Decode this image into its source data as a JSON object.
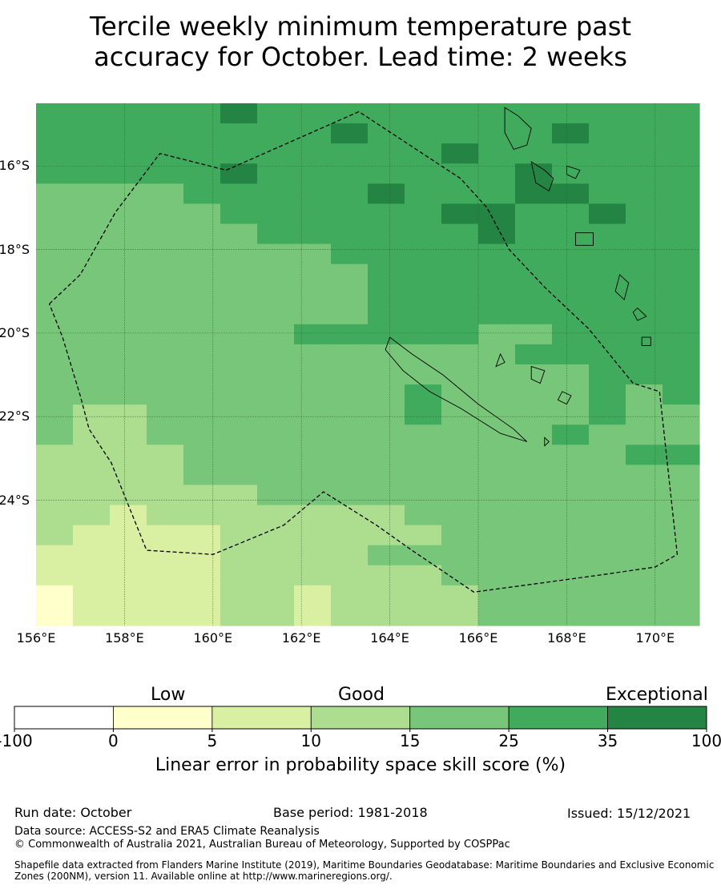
{
  "title_line1": "Tercile weekly minimum temperature past",
  "title_line2": "accuracy for October. Lead time: 2 weeks",
  "map": {
    "lon_range": [
      156.0,
      171.0
    ],
    "lat_range": [
      -27.0,
      -14.5
    ],
    "cell_deg": 0.83,
    "lat_labels": [
      "16°S",
      "18°S",
      "20°S",
      "22°S",
      "24°S"
    ],
    "lat_values": [
      -16,
      -18,
      -20,
      -22,
      -24
    ],
    "lon_labels": [
      "156°E",
      "158°E",
      "160°E",
      "162°E",
      "164°E",
      "166°E",
      "168°E",
      "170°E"
    ],
    "lon_values": [
      156,
      158,
      160,
      162,
      164,
      166,
      168,
      170
    ],
    "skill_grid_rows": [
      "FFFFFGFFFFFFFFFFFF",
      "FFFFFFFFGFFFFFGFFF",
      "FFFFFFFFFFFGFFFFFF",
      "FFFFFGFFFFFFFGFFFF",
      "EEEEFFFFFGFFFGGFFF",
      "EEEEEFFFFFFGGFFGFF",
      "EEEEEEFFFFFFGFFFFF",
      "EEEEEEEEFFFFFFFFFF",
      "EEEEEEEEEFFFFFFFFF",
      "EEEEEEEEEFFFFFFFFF",
      "EEEEEEEEEFFFFFFFFF",
      "EEEEEEEFFFFFEEFFFF",
      "EEEEEEEEEEEEEFFFFF",
      "EEEEEEEEEEEEEEEFFF",
      "EEEEEEEEEEFEEEEFEF",
      "EDDEEEEEEEFEEEEFEE",
      "EDDEEEEEEEEEEEFEEE",
      "DDDDEEEEEEEEEEEEFF",
      "DDDDEEEEEEEEEEEEEE",
      "DDDDDDEEEEEEEEEEEE",
      "DDCDDDDDDDEEEEEEEE",
      "DCCCCDDDDDDEEEEEEE",
      "CCCCCDDDDEEEEEEEEE",
      "CCCCCDDDDDDEEEEEEE",
      "BCCCCDDCDDDDEEEEEE",
      "BCCCCDDCDDDDEEEEEE"
    ],
    "grid_legend": {
      "B": "0 to 5",
      "C": "5 to 10",
      "D": "10 to 15",
      "E": "15 to 25",
      "F": "25 to 35",
      "G": "35 to 100"
    },
    "eez_boundary": [
      [
        156.3,
        -19.3
      ],
      [
        157.0,
        -18.6
      ],
      [
        157.8,
        -17.1
      ],
      [
        158.8,
        -15.7
      ],
      [
        160.3,
        -16.1
      ],
      [
        163.3,
        -14.7
      ],
      [
        165.6,
        -16.3
      ],
      [
        166.2,
        -17.0
      ],
      [
        166.7,
        -18.0
      ],
      [
        167.5,
        -18.9
      ],
      [
        168.5,
        -19.9
      ],
      [
        169.5,
        -21.2
      ],
      [
        170.1,
        -21.4
      ],
      [
        170.5,
        -25.3
      ],
      [
        170.0,
        -25.6
      ],
      [
        168.7,
        -25.8
      ],
      [
        165.9,
        -26.2
      ],
      [
        164.5,
        -25.2
      ],
      [
        163.7,
        -24.6
      ],
      [
        162.5,
        -23.8
      ],
      [
        161.6,
        -24.6
      ],
      [
        160.0,
        -25.3
      ],
      [
        158.5,
        -25.2
      ],
      [
        157.7,
        -23.1
      ],
      [
        157.2,
        -22.3
      ],
      [
        157.0,
        -21.5
      ],
      [
        156.6,
        -20.1
      ]
    ],
    "land_polygons": [
      [
        [
          164.0,
          -20.1
        ],
        [
          164.5,
          -20.5
        ],
        [
          165.2,
          -21.0
        ],
        [
          166.0,
          -21.7
        ],
        [
          166.8,
          -22.3
        ],
        [
          167.1,
          -22.6
        ],
        [
          166.5,
          -22.4
        ],
        [
          165.6,
          -21.8
        ],
        [
          164.9,
          -21.4
        ],
        [
          164.3,
          -20.9
        ],
        [
          163.9,
          -20.4
        ]
      ],
      [
        [
          166.6,
          -14.6
        ],
        [
          166.9,
          -14.8
        ],
        [
          167.2,
          -15.1
        ],
        [
          167.1,
          -15.5
        ],
        [
          166.8,
          -15.6
        ],
        [
          166.6,
          -15.2
        ]
      ],
      [
        [
          167.2,
          -15.9
        ],
        [
          167.5,
          -16.1
        ],
        [
          167.7,
          -16.3
        ],
        [
          167.6,
          -16.6
        ],
        [
          167.3,
          -16.4
        ]
      ],
      [
        [
          168.0,
          -16.0
        ],
        [
          168.3,
          -16.1
        ],
        [
          168.2,
          -16.3
        ],
        [
          168.0,
          -16.2
        ]
      ],
      [
        [
          168.2,
          -17.6
        ],
        [
          168.6,
          -17.6
        ],
        [
          168.6,
          -17.9
        ],
        [
          168.2,
          -17.9
        ]
      ],
      [
        [
          169.2,
          -18.6
        ],
        [
          169.4,
          -18.8
        ],
        [
          169.3,
          -19.2
        ],
        [
          169.1,
          -19.0
        ]
      ],
      [
        [
          169.6,
          -19.4
        ],
        [
          169.8,
          -19.6
        ],
        [
          169.6,
          -19.7
        ],
        [
          169.5,
          -19.5
        ]
      ],
      [
        [
          167.2,
          -20.8
        ],
        [
          167.5,
          -20.9
        ],
        [
          167.4,
          -21.2
        ],
        [
          167.2,
          -21.1
        ]
      ],
      [
        [
          167.9,
          -21.4
        ],
        [
          168.1,
          -21.5
        ],
        [
          168.0,
          -21.7
        ],
        [
          167.8,
          -21.6
        ]
      ],
      [
        [
          166.5,
          -20.5
        ],
        [
          166.6,
          -20.7
        ],
        [
          166.4,
          -20.8
        ]
      ],
      [
        [
          169.7,
          -20.1
        ],
        [
          169.9,
          -20.1
        ],
        [
          169.9,
          -20.3
        ],
        [
          169.7,
          -20.3
        ]
      ],
      [
        [
          167.5,
          -22.5
        ],
        [
          167.6,
          -22.6
        ],
        [
          167.5,
          -22.7
        ]
      ]
    ],
    "colors": {
      "A": "#ffffff",
      "B": "#ffffcc",
      "C": "#d9f0a3",
      "D": "#addd8e",
      "E": "#78c679",
      "F": "#41ab5d",
      "G": "#238443"
    }
  },
  "legend": {
    "categories": [
      "Low",
      "Good",
      "Exceptional"
    ],
    "ticks": [
      "-100",
      "0",
      "5",
      "10",
      "15",
      "25",
      "35",
      "100"
    ],
    "colors": [
      "#ffffff",
      "#ffffcc",
      "#d9f0a3",
      "#addd8e",
      "#78c679",
      "#41ab5d",
      "#238443"
    ],
    "title": "Linear error in probability space skill score (%)"
  },
  "footer": {
    "run_date": "Run date: October",
    "base_period": "Base period: 1981-2018",
    "issued": "Issued: 15/12/2021",
    "data_source": "Data source: ACCESS-S2 and ERA5 Climate Reanalysis",
    "copyright": "© Commonwealth of Australia 2021, Australian Bureau of Meteorology, Supported by COSPPac",
    "shapefile_note": "Shapefile data extracted from Flanders Marine Institute (2019), Maritime Boundaries Geodatabase: Maritime Boundaries and Exclusive Economic Zones (200NM), version 11. Available online at http://www.marineregions.org/."
  }
}
